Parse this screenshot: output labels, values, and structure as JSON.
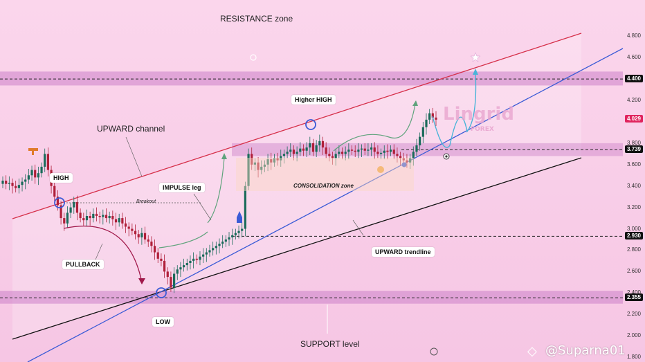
{
  "chart_data": {
    "type": "candlestick",
    "y_axis": {
      "ticks": [
        "4.800",
        "4.600",
        "4.200",
        "3.800",
        "3.600",
        "3.400",
        "3.200",
        "3.000",
        "2.800",
        "2.600",
        "2.400",
        "2.200",
        "2.000",
        "1.800"
      ],
      "min": 1.8,
      "max": 5.1,
      "position": "right"
    },
    "price_tags": [
      {
        "label": "4.400",
        "value": 4.4,
        "color": "#111111"
      },
      {
        "label": "4.029",
        "value": 4.029,
        "color": "#e0245e"
      },
      {
        "label": "3.739",
        "value": 3.739,
        "color": "#111111"
      },
      {
        "label": "2.930",
        "value": 2.93,
        "color": "#111111"
      },
      {
        "label": "2.355",
        "value": 2.355,
        "color": "#111111"
      }
    ],
    "zones": [
      {
        "name": "resistance",
        "label": "RESISTANCE zone",
        "low": 4.34,
        "high": 4.47
      },
      {
        "name": "support",
        "label": "SUPPORT level",
        "low": 2.3,
        "high": 2.42
      },
      {
        "name": "breakout",
        "low": 3.68,
        "high": 3.8
      }
    ],
    "levels": [
      4.4,
      3.739,
      2.93,
      2.355
    ],
    "annotations": {
      "high": "HIGH",
      "low": "LOW",
      "pullback": "PULLBACK",
      "impulse": "IMPULSE leg",
      "breakout": "Breakout",
      "higher_high": "Higher HIGH",
      "upward_channel": "UPWARD channel",
      "upward_trendline": "UPWARD trendline",
      "consolidation": "CONSOLIDATION zone"
    },
    "candles_close": [
      3.45,
      3.42,
      3.43,
      3.4,
      3.38,
      3.41,
      3.44,
      3.46,
      3.5,
      3.55,
      3.48,
      3.52,
      3.58,
      3.7,
      3.55,
      3.4,
      3.3,
      3.22,
      3.1,
      3.05,
      3.15,
      3.2,
      3.25,
      3.15,
      3.1,
      3.08,
      3.12,
      3.1,
      3.14,
      3.12,
      3.11,
      3.13,
      3.1,
      3.12,
      3.09,
      3.06,
      3.1,
      3.05,
      3.02,
      3.0,
      2.98,
      2.95,
      2.92,
      2.96,
      2.9,
      2.88,
      2.84,
      2.78,
      2.72,
      2.7,
      2.6,
      2.55,
      2.45,
      2.58,
      2.62,
      2.64,
      2.66,
      2.68,
      2.7,
      2.72,
      2.71,
      2.74,
      2.76,
      2.78,
      2.8,
      2.82,
      2.84,
      2.86,
      2.88,
      2.9,
      2.92,
      2.94,
      2.96,
      2.98,
      3.0,
      3.4,
      3.7,
      3.6,
      3.62,
      3.55,
      3.58,
      3.6,
      3.65,
      3.62,
      3.66,
      3.64,
      3.68,
      3.7,
      3.72,
      3.74,
      3.7,
      3.72,
      3.75,
      3.73,
      3.76,
      3.8,
      3.72,
      3.78,
      3.82,
      3.76,
      3.7,
      3.68,
      3.66,
      3.7,
      3.72,
      3.7,
      3.72,
      3.74,
      3.73,
      3.72,
      3.74,
      3.75,
      3.73,
      3.74,
      3.76,
      3.72,
      3.7,
      3.71,
      3.73,
      3.72,
      3.74,
      3.7,
      3.68,
      3.66,
      3.64,
      3.62,
      3.66,
      3.72,
      3.78,
      3.86,
      3.95,
      4.02,
      4.08,
      4.04,
      4.02
    ],
    "colors": {
      "up": "#1a6b5a",
      "down": "#b0203a",
      "trendline": "#3b5bd6",
      "channel_upper": "#d6304a",
      "channel_lower": "#111111",
      "zone": "#cc80c8"
    }
  },
  "watermark": {
    "brand": "Lingrid",
    "sub": "FOREX",
    "handle": "@Suparna01"
  }
}
